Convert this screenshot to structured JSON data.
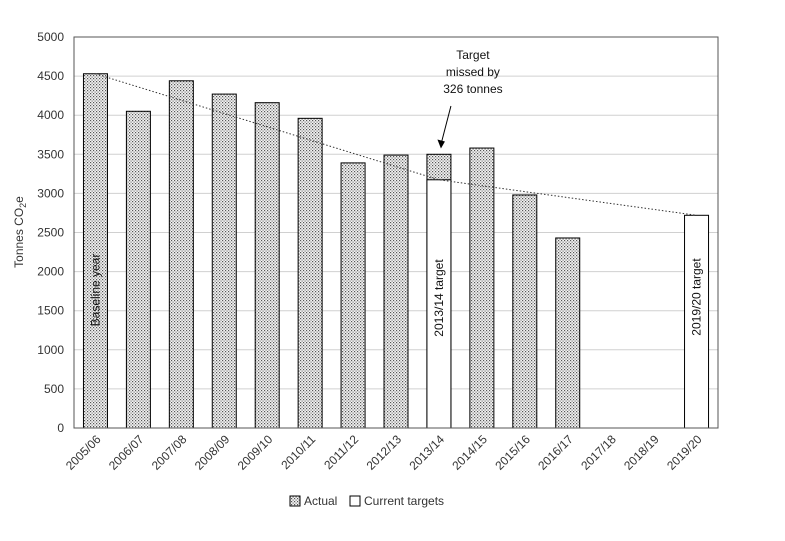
{
  "chart_data": {
    "type": "bar",
    "ylabel": "Tonnes CO2e",
    "ylabel_main": "Tonnes CO",
    "ylabel_sub": "2",
    "ylabel_end": "e",
    "ylim": [
      0,
      5000
    ],
    "yticks": [
      "0",
      "500",
      "1000",
      "1500",
      "2000",
      "2500",
      "3000",
      "3500",
      "4000",
      "4500",
      "5000"
    ],
    "grid": true,
    "legend_position": "bottom",
    "categories": [
      "2005/06",
      "2006/07",
      "2007/08",
      "2008/09",
      "2009/10",
      "2010/11",
      "2011/12",
      "2012/13",
      "2013/14",
      "2014/15",
      "2015/16",
      "2016/17",
      "2017/18",
      "2018/19",
      "2019/20"
    ],
    "series": [
      {
        "name": "Actual",
        "values": [
          4530,
          4050,
          4440,
          4270,
          4160,
          3960,
          3390,
          3490,
          3500,
          3580,
          2980,
          2430,
          null,
          null,
          null
        ]
      },
      {
        "name": "Current targets",
        "values": [
          null,
          null,
          null,
          null,
          null,
          null,
          null,
          null,
          3174,
          null,
          null,
          null,
          null,
          null,
          2720
        ]
      }
    ],
    "trendline": {
      "style": "dotted",
      "points": [
        [
          0,
          4530
        ],
        [
          8,
          3174
        ],
        [
          14,
          2720
        ]
      ]
    },
    "bar_labels": [
      {
        "category": "2005/06",
        "text": "Baseline year"
      },
      {
        "category": "2013/14",
        "text": "2013/14 target"
      },
      {
        "category": "2019/20",
        "text": "2019/20 target"
      }
    ],
    "annotation": {
      "category": "2013/14",
      "lines": [
        "Target",
        "missed by",
        "326 tonnes"
      ]
    }
  }
}
